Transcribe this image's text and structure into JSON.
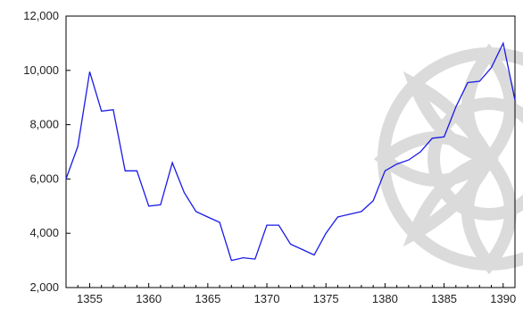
{
  "chart_data": {
    "type": "line",
    "title": "",
    "xlabel": "",
    "ylabel": "",
    "x": [
      1353,
      1354,
      1355,
      1356,
      1357,
      1358,
      1359,
      1360,
      1361,
      1362,
      1363,
      1364,
      1365,
      1366,
      1367,
      1368,
      1369,
      1370,
      1371,
      1372,
      1373,
      1374,
      1375,
      1376,
      1377,
      1378,
      1379,
      1380,
      1381,
      1382,
      1383,
      1384,
      1385,
      1386,
      1387,
      1388,
      1389,
      1390,
      1391
    ],
    "series": [
      {
        "values": [
          6000,
          7200,
          9950,
          8500,
          8550,
          6300,
          6300,
          5000,
          5050,
          6600,
          5500,
          4800,
          4600,
          4400,
          3000,
          3100,
          3050,
          4300,
          4300,
          3600,
          3400,
          3200,
          4000,
          4600,
          4700,
          4800,
          5200,
          6300,
          6550,
          6700,
          7000,
          7500,
          7550,
          8650,
          9550,
          9600,
          10100,
          11000,
          8900
        ],
        "color": "#1a1ae6"
      }
    ],
    "xlim": [
      1353,
      1391
    ],
    "ylim": [
      2000,
      12000
    ],
    "x_ticks": [
      "1355",
      "1360",
      "1365",
      "1370",
      "1375",
      "1380",
      "1385",
      "1390"
    ],
    "y_ticks": [
      "2,000",
      "4,000",
      "6,000",
      "8,000",
      "10,000",
      "12,000"
    ],
    "grid": false,
    "legend": "none"
  }
}
